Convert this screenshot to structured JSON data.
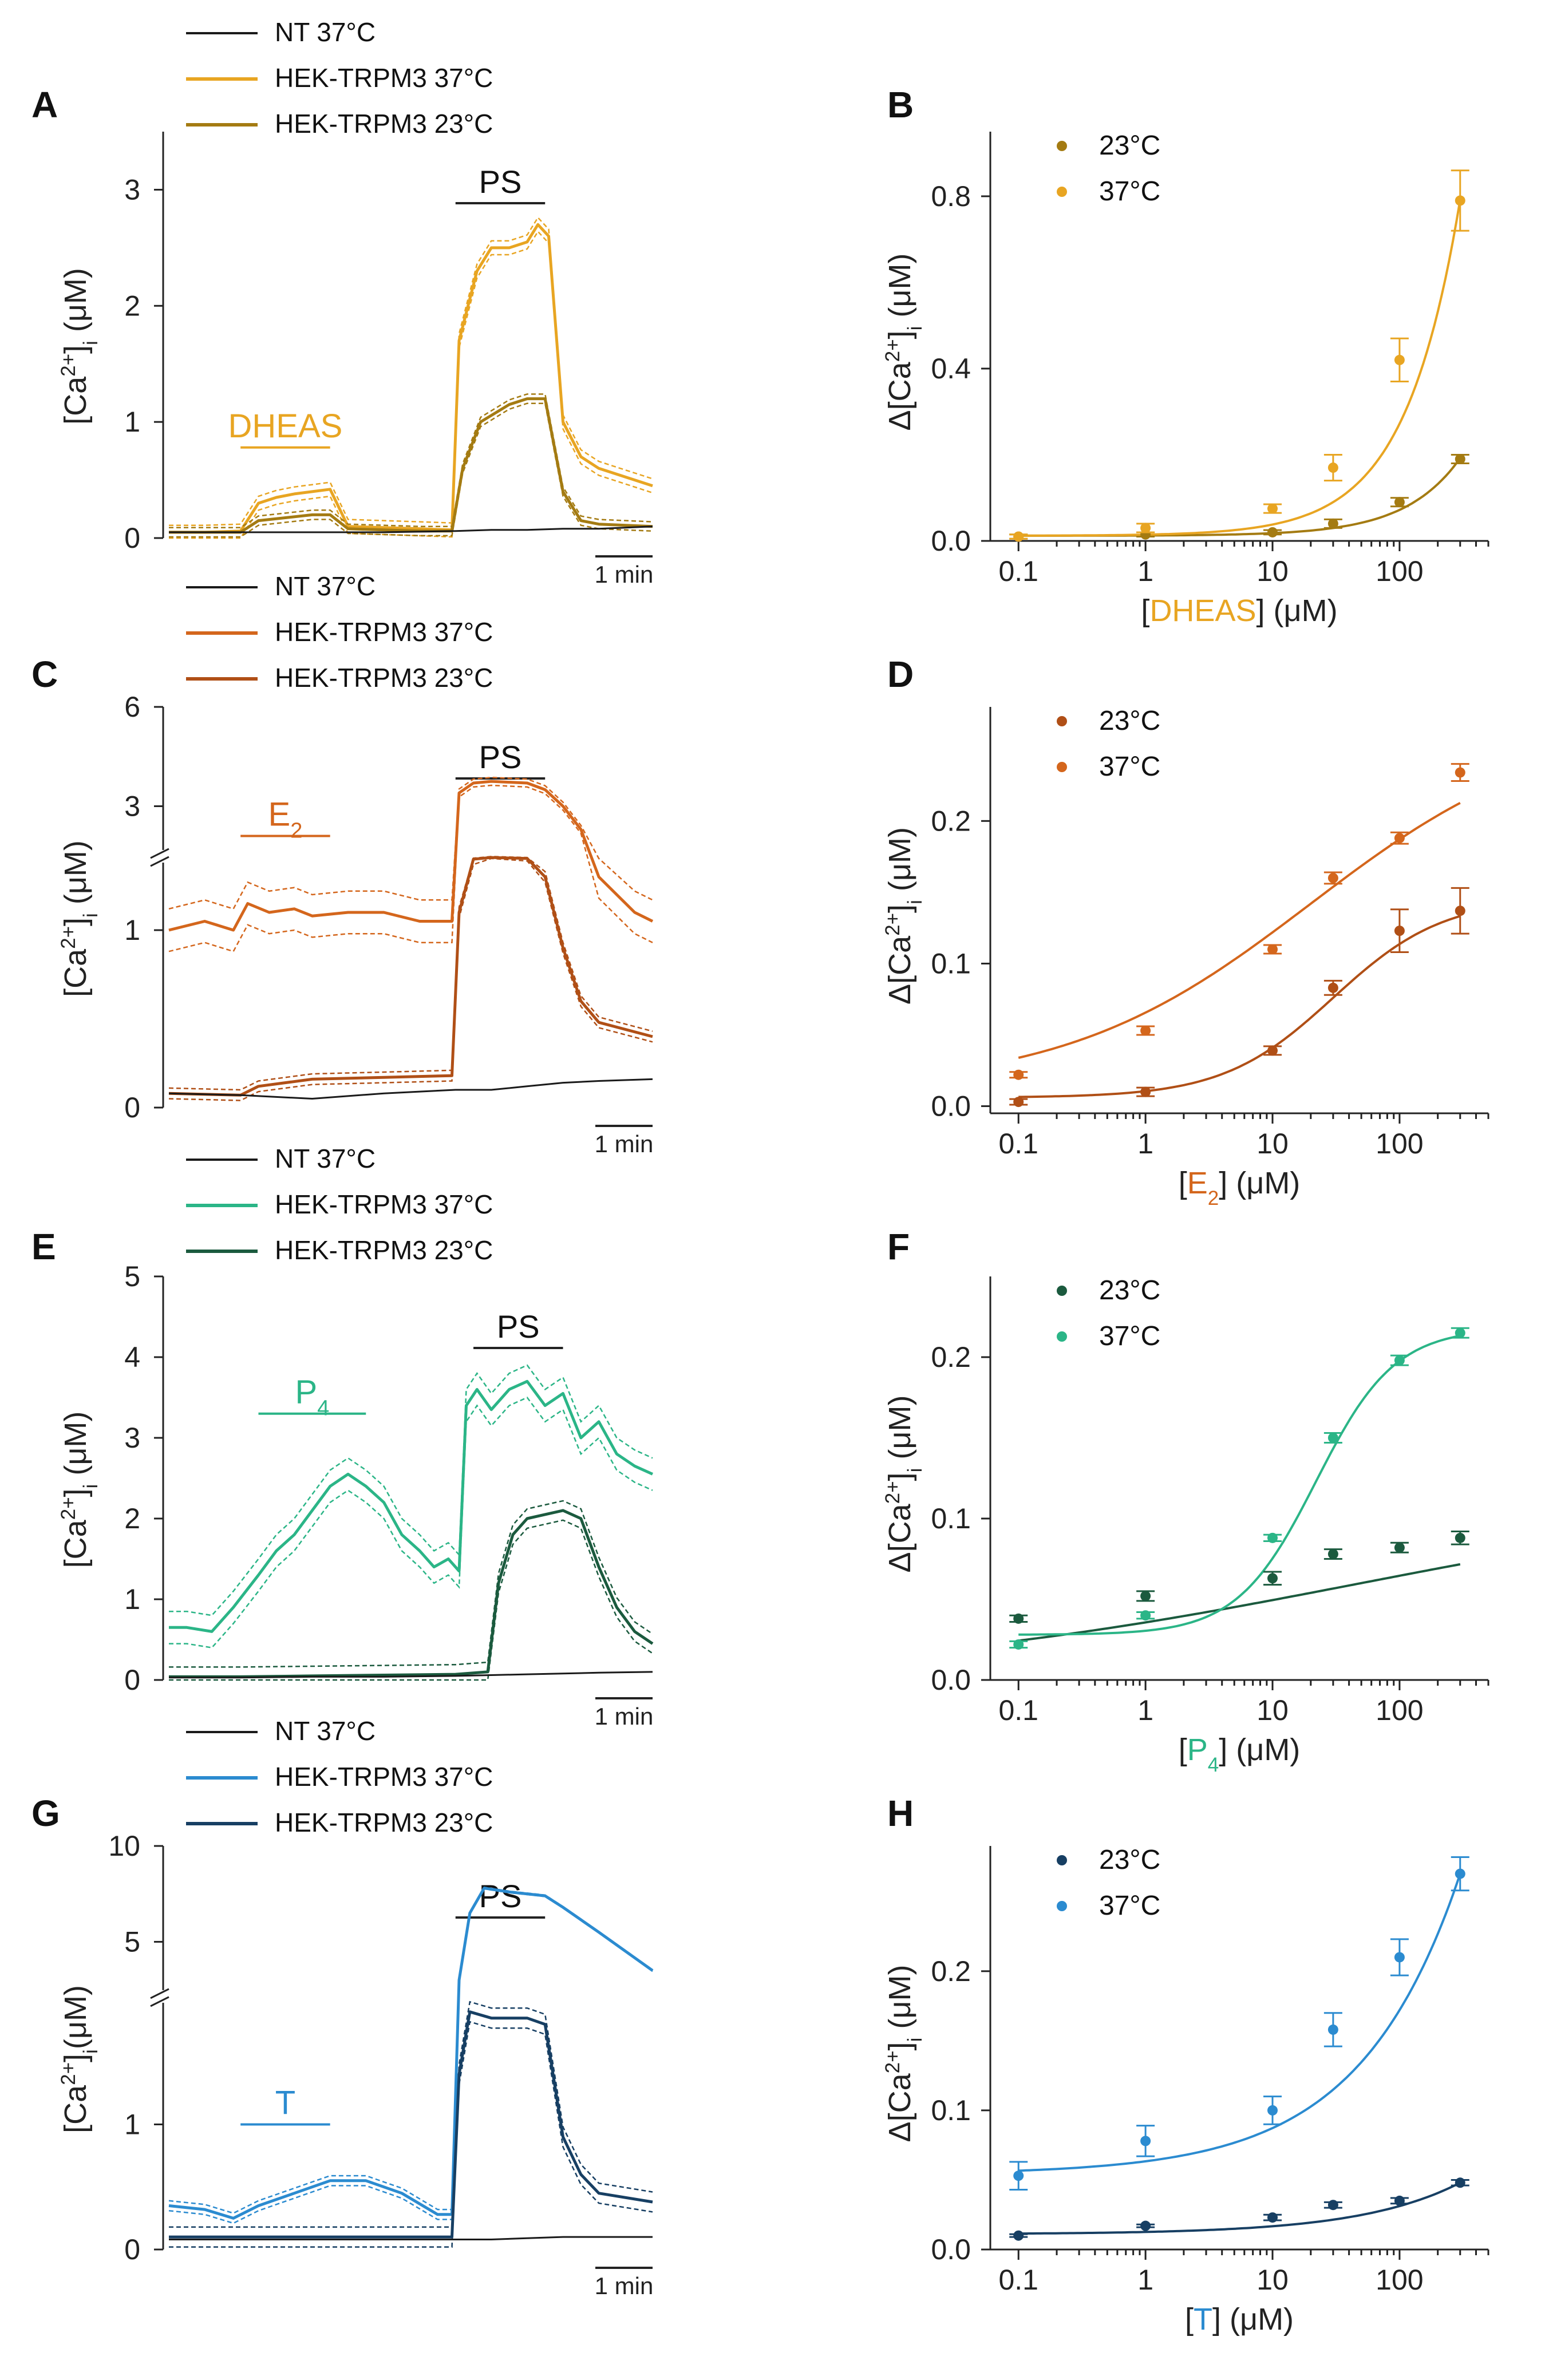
{
  "figure": {
    "time_scale_label": "1 min",
    "stimulus_label": "PS",
    "ylabel_trace": "[Ca2+]i (μM)",
    "ylabel_dose": "Δ[Ca2+]i (μM)",
    "colors": {
      "nt": "#1a1a1a",
      "axis": "#222222"
    }
  },
  "chart_data": [
    {
      "panel": "A",
      "type": "line",
      "agonist": "DHEAS",
      "title": "",
      "legend": [
        "NT  37°C",
        "HEK-TRPM3 37°C",
        "HEK-TRPM3 23°C"
      ],
      "colors": {
        "c37": "#e8a522",
        "c23": "#a47b12"
      },
      "xlabel": "",
      "ylabel": "[Ca2+]i (μM)",
      "yticks": [
        0,
        1,
        2,
        3
      ],
      "ylim": [
        0,
        3.5
      ],
      "broken_axis": false,
      "time_window_min": [
        0,
        13.5
      ],
      "agonist_bar_min": [
        2.0,
        4.5
      ],
      "ps_bar_min": [
        8.0,
        10.5
      ],
      "series": [
        {
          "name": "NT 37°C",
          "t": [
            0,
            2,
            4,
            6,
            8,
            9,
            10,
            11,
            12,
            13.5
          ],
          "values": [
            0.05,
            0.05,
            0.05,
            0.05,
            0.06,
            0.07,
            0.07,
            0.08,
            0.08,
            0.1
          ]
        },
        {
          "name": "HEK-TRPM3 37°C",
          "sem": 0.06,
          "t": [
            0,
            1,
            2,
            2.5,
            3,
            3.5,
            4,
            4.5,
            5,
            7,
            7.9,
            8.1,
            8.6,
            9,
            9.5,
            10,
            10.3,
            10.6,
            11,
            11.5,
            12,
            13.5
          ],
          "values": [
            0.05,
            0.05,
            0.06,
            0.3,
            0.35,
            0.38,
            0.4,
            0.42,
            0.1,
            0.08,
            0.07,
            1.7,
            2.3,
            2.5,
            2.5,
            2.55,
            2.7,
            2.6,
            1.0,
            0.7,
            0.6,
            0.45
          ]
        },
        {
          "name": "HEK-TRPM3 23°C",
          "sem": 0.04,
          "t": [
            0,
            2,
            2.5,
            4,
            4.5,
            5,
            7,
            7.9,
            8.2,
            8.7,
            9.5,
            10,
            10.5,
            11,
            11.5,
            12,
            13.5
          ],
          "values": [
            0.05,
            0.05,
            0.15,
            0.2,
            0.2,
            0.08,
            0.06,
            0.06,
            0.6,
            1.0,
            1.15,
            1.2,
            1.2,
            0.4,
            0.15,
            0.12,
            0.1
          ]
        }
      ]
    },
    {
      "panel": "B",
      "type": "scatter",
      "agonist": "DHEAS",
      "title": "",
      "legend": [
        "23°C",
        "37°C"
      ],
      "colors": {
        "c37": "#e8a522",
        "c23": "#a47b12"
      },
      "xlabel": "[DHEAS] (μM)",
      "ylabel": "Δ[Ca2+]i (μM)",
      "x": [
        0.1,
        1,
        10,
        30,
        100,
        300
      ],
      "xticks": [
        0.1,
        1,
        10,
        100
      ],
      "yticks": [
        0.0,
        0.4,
        0.8
      ],
      "ylim": [
        0,
        0.95
      ],
      "series": [
        {
          "name": "23°C",
          "values": [
            0.01,
            0.015,
            0.02,
            0.04,
            0.09,
            0.19
          ],
          "err": [
            0.005,
            0.005,
            0.005,
            0.01,
            0.01,
            0.01
          ]
        },
        {
          "name": "37°C",
          "values": [
            0.01,
            0.03,
            0.075,
            0.17,
            0.42,
            0.79
          ],
          "err": [
            0.005,
            0.01,
            0.01,
            0.03,
            0.05,
            0.07
          ]
        }
      ],
      "fit": {
        "curve": "power",
        "23": {
          "base": 0.012,
          "amp": 0.18,
          "ec50": 300,
          "n": 1
        },
        "37": {
          "base": 0.012,
          "amp": 0.78,
          "ec50": 300,
          "n": 1
        }
      }
    },
    {
      "panel": "C",
      "type": "line",
      "agonist": "E2",
      "title": "",
      "legend": [
        "NT  37°C",
        "HEK-TRPM3 37°C",
        "HEK-TRPM3 23°C"
      ],
      "colors": {
        "c37": "#d4661c",
        "c23": "#b04f16"
      },
      "xlabel": "",
      "ylabel": "[Ca2+]i (μM)",
      "yticks": [
        0,
        1,
        3,
        6
      ],
      "broken_axis": true,
      "break_at": 1.4,
      "time_window_min": [
        0,
        13.5
      ],
      "agonist_bar_min": [
        2.0,
        4.5
      ],
      "ps_bar_min": [
        8.0,
        10.5
      ],
      "series": [
        {
          "name": "NT 37°C",
          "t": [
            0,
            2,
            4,
            6,
            8,
            9,
            10,
            11,
            12,
            13.5
          ],
          "values": [
            0.08,
            0.07,
            0.05,
            0.08,
            0.1,
            0.1,
            0.12,
            0.14,
            0.15,
            0.16
          ]
        },
        {
          "name": "HEK-TRPM3 37°C",
          "sem": 0.12,
          "t": [
            0,
            1,
            1.8,
            2.2,
            2.8,
            3.5,
            4,
            5,
            6,
            7,
            7.9,
            8.1,
            8.5,
            9,
            10,
            10.5,
            11,
            11.5,
            12,
            13,
            13.5
          ],
          "values": [
            1.0,
            1.05,
            1.0,
            1.15,
            1.1,
            1.12,
            1.08,
            1.1,
            1.1,
            1.05,
            1.05,
            3.4,
            3.7,
            3.75,
            3.7,
            3.5,
            3.0,
            2.3,
            1.3,
            1.1,
            1.05
          ]
        },
        {
          "name": "HEK-TRPM3 23°C",
          "sem": 0.03,
          "t": [
            0,
            2,
            2.5,
            4,
            6,
            7.9,
            8.1,
            8.5,
            9,
            10,
            10.5,
            11,
            11.5,
            12,
            13.5
          ],
          "values": [
            0.08,
            0.07,
            0.12,
            0.16,
            0.17,
            0.18,
            1.1,
            1.4,
            1.45,
            1.42,
            1.3,
            0.9,
            0.6,
            0.48,
            0.4
          ]
        }
      ]
    },
    {
      "panel": "D",
      "type": "scatter",
      "agonist": "E2",
      "title": "",
      "legend": [
        "23°C",
        "37°C"
      ],
      "colors": {
        "c37": "#d4661c",
        "c23": "#b04f16"
      },
      "xlabel": "[E2] (μM)",
      "ylabel": "Δ[Ca2+]i (μM)",
      "x": [
        0.1,
        1,
        10,
        30,
        100,
        300
      ],
      "xticks": [
        0.1,
        1,
        10,
        100
      ],
      "yticks": [
        0.0,
        0.1,
        0.2
      ],
      "ylim": [
        -0.005,
        0.28
      ],
      "series": [
        {
          "name": "23°C",
          "values": [
            0.003,
            0.01,
            0.039,
            0.083,
            0.123,
            0.137
          ],
          "err": [
            0.002,
            0.003,
            0.003,
            0.005,
            0.015,
            0.016
          ]
        },
        {
          "name": "37°C",
          "values": [
            0.022,
            0.053,
            0.11,
            0.16,
            0.188,
            0.234
          ],
          "err": [
            0.002,
            0.003,
            0.003,
            0.004,
            0.004,
            0.006
          ]
        }
      ],
      "fit": {
        "curve": "hill",
        "23": {
          "base": 0.006,
          "amp": 0.14,
          "ec50": 30,
          "n": 1.0
        },
        "37": {
          "base": 0.012,
          "amp": 0.26,
          "ec50": 20,
          "n": 0.45
        }
      }
    },
    {
      "panel": "E",
      "type": "line",
      "agonist": "P4",
      "title": "",
      "legend": [
        "NT 37°C",
        "HEK-TRPM3 37°C",
        "HEK-TRPM3 23°C"
      ],
      "colors": {
        "c37": "#2bb587",
        "c23": "#1b5a3e"
      },
      "xlabel": "",
      "ylabel": "[Ca2+]i (μM)",
      "yticks": [
        0,
        1,
        2,
        3,
        4,
        5
      ],
      "ylim": [
        0,
        5
      ],
      "broken_axis": false,
      "time_window_min": [
        0,
        13.5
      ],
      "agonist_bar_min": [
        2.5,
        5.5
      ],
      "ps_bar_min": [
        8.5,
        11.0
      ],
      "series": [
        {
          "name": "NT 37°C",
          "t": [
            0,
            2,
            4,
            6,
            8,
            9,
            10,
            11,
            12,
            13.5
          ],
          "values": [
            0.03,
            0.03,
            0.04,
            0.04,
            0.05,
            0.06,
            0.07,
            0.08,
            0.09,
            0.1
          ]
        },
        {
          "name": "HEK-TRPM3 37°C",
          "sem": 0.2,
          "t": [
            0,
            0.5,
            1.2,
            1.8,
            2.5,
            3,
            3.5,
            4,
            4.5,
            5,
            5.5,
            6,
            6.5,
            7,
            7.4,
            7.8,
            8.1,
            8.3,
            8.6,
            9,
            9.5,
            10,
            10.5,
            11,
            11.5,
            12,
            12.5,
            13,
            13.5
          ],
          "values": [
            0.65,
            0.65,
            0.6,
            0.9,
            1.3,
            1.6,
            1.8,
            2.1,
            2.4,
            2.55,
            2.4,
            2.2,
            1.8,
            1.6,
            1.4,
            1.5,
            1.35,
            3.4,
            3.6,
            3.35,
            3.6,
            3.7,
            3.4,
            3.55,
            3.0,
            3.2,
            2.8,
            2.65,
            2.55
          ]
        },
        {
          "name": "HEK-TRPM3 23°C",
          "sem": 0.12,
          "t": [
            0,
            2,
            4,
            6,
            8,
            8.9,
            9.2,
            9.6,
            10,
            10.5,
            11,
            11.5,
            12,
            12.5,
            13,
            13.5
          ],
          "values": [
            0.04,
            0.04,
            0.05,
            0.06,
            0.07,
            0.1,
            1.2,
            1.8,
            2.0,
            2.05,
            2.1,
            2.0,
            1.4,
            0.9,
            0.6,
            0.45
          ]
        }
      ]
    },
    {
      "panel": "F",
      "type": "scatter",
      "agonist": "P4",
      "title": "",
      "legend": [
        "23°C",
        "37°C"
      ],
      "colors": {
        "c37": "#2bb587",
        "c23": "#1b5a3e"
      },
      "xlabel": "[P4] (μM)",
      "ylabel": "Δ[Ca2+]i (μM)",
      "x": [
        0.1,
        1,
        10,
        30,
        100,
        300
      ],
      "xticks": [
        0.1,
        1,
        10,
        100
      ],
      "yticks": [
        0.0,
        0.1,
        0.2
      ],
      "ylim": [
        0,
        0.25
      ],
      "series": [
        {
          "name": "23°C",
          "values": [
            0.038,
            0.052,
            0.063,
            0.078,
            0.082,
            0.088
          ],
          "err": [
            0.002,
            0.003,
            0.004,
            0.003,
            0.003,
            0.004
          ]
        },
        {
          "name": "37°C",
          "values": [
            0.022,
            0.04,
            0.088,
            0.15,
            0.198,
            0.215
          ],
          "err": [
            0.002,
            0.002,
            0.002,
            0.003,
            0.003,
            0.003
          ]
        }
      ],
      "fit": {
        "curve": "hill",
        "23": {
          "base": 0.0,
          "amp": 0.12,
          "ec50": 50,
          "n": 0.22
        },
        "37": {
          "base": 0.028,
          "amp": 0.19,
          "ec50": 22,
          "n": 1.4
        }
      }
    },
    {
      "panel": "G",
      "type": "line",
      "agonist": "T",
      "title": "",
      "legend": [
        "NT 37°C",
        "HEK-TRPM3 37°C",
        "HEK-TRPM3 23°C"
      ],
      "colors": {
        "c37": "#2b8bd0",
        "c23": "#173f63"
      },
      "xlabel": "",
      "ylabel": "[Ca2+]i(μM)",
      "yticks": [
        0,
        1,
        5,
        10
      ],
      "broken_axis": true,
      "break_at": 2.0,
      "time_window_min": [
        0,
        13.5
      ],
      "agonist_bar_min": [
        2.0,
        4.5
      ],
      "ps_bar_min": [
        8.0,
        10.5
      ],
      "series": [
        {
          "name": "NT 37°C",
          "t": [
            0,
            2,
            4,
            6,
            8,
            9,
            10,
            11,
            12,
            13.5
          ],
          "values": [
            0.08,
            0.08,
            0.08,
            0.08,
            0.08,
            0.08,
            0.09,
            0.1,
            0.1,
            0.1
          ]
        },
        {
          "name": "HEK-TRPM3 37°C",
          "sem": 0.04,
          "t": [
            0,
            1,
            1.8,
            2.5,
            3.5,
            4.5,
            5.5,
            6.5,
            7.5,
            7.9,
            8.1,
            8.4,
            8.8,
            9.5,
            10.5,
            11,
            12,
            13.5
          ],
          "values": [
            0.35,
            0.32,
            0.25,
            0.35,
            0.45,
            0.55,
            0.55,
            0.45,
            0.28,
            0.28,
            3.0,
            6.5,
            7.8,
            7.6,
            7.4,
            6.8,
            5.5,
            3.5
          ]
        },
        {
          "name": "HEK-TRPM3 23°C",
          "sem": 0.08,
          "t": [
            0,
            2,
            4,
            6,
            7.9,
            8.1,
            8.4,
            9,
            10,
            10.5,
            11,
            11.5,
            12,
            13.5
          ],
          "values": [
            0.1,
            0.1,
            0.1,
            0.1,
            0.1,
            1.4,
            1.9,
            1.85,
            1.85,
            1.8,
            0.9,
            0.6,
            0.45,
            0.38
          ]
        }
      ]
    },
    {
      "panel": "H",
      "type": "scatter",
      "agonist": "T",
      "title": "",
      "legend": [
        "23°C",
        "37°C"
      ],
      "colors": {
        "c37": "#2b8bd0",
        "c23": "#173f63"
      },
      "xlabel": "[T] (μM)",
      "ylabel": "Δ[Ca2+]i (μM)",
      "x": [
        0.1,
        1,
        10,
        30,
        100,
        300
      ],
      "xticks": [
        0.1,
        1,
        10,
        100
      ],
      "yticks": [
        0.0,
        0.1,
        0.2
      ],
      "ylim": [
        0,
        0.29
      ],
      "series": [
        {
          "name": "23°C",
          "values": [
            0.01,
            0.017,
            0.023,
            0.032,
            0.035,
            0.048
          ],
          "err": [
            0.001,
            0.001,
            0.002,
            0.002,
            0.002,
            0.002
          ]
        },
        {
          "name": "37°C",
          "values": [
            0.053,
            0.078,
            0.1,
            0.158,
            0.21,
            0.27
          ],
          "err": [
            0.01,
            0.011,
            0.01,
            0.012,
            0.013,
            0.012
          ]
        }
      ],
      "fit": {
        "curve": "power",
        "23": {
          "base": 0.011,
          "amp": 0.037,
          "ec50": 300,
          "n": 0.55
        },
        "37": {
          "base": 0.054,
          "amp": 0.216,
          "ec50": 300,
          "n": 0.55
        }
      }
    }
  ]
}
